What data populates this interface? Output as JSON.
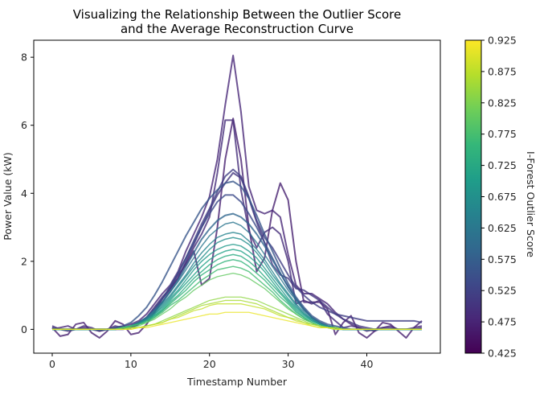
{
  "chart_data": {
    "type": "line",
    "title_lines": [
      "Visualizing the Relationship Between the Outlier Score",
      "and the Average Reconstruction Curve"
    ],
    "xlabel": "Timestamp Number",
    "ylabel": "Power Value (kW)",
    "xlim": [
      -2.35,
      49.35
    ],
    "ylim": [
      -0.7,
      8.5
    ],
    "x_ticks": [
      0,
      10,
      20,
      30,
      40
    ],
    "y_ticks": [
      0,
      2,
      4,
      6,
      8
    ],
    "colorbar": {
      "label": "I-Forest Outlier Score",
      "range": [
        0.425,
        0.925
      ],
      "ticks": [
        "0.425",
        "0.475",
        "0.525",
        "0.575",
        "0.625",
        "0.675",
        "0.725",
        "0.775",
        "0.825",
        "0.875",
        "0.925"
      ],
      "stops": [
        "#440154",
        "#482878",
        "#3e4989",
        "#31688e",
        "#26828e",
        "#1f9e89",
        "#35b779",
        "#6ece58",
        "#b5de2b",
        "#fde725"
      ]
    },
    "series": [
      {
        "score": 0.47,
        "values": [
          0.05,
          -0.2,
          -0.15,
          0.15,
          0.2,
          -0.1,
          -0.25,
          -0.05,
          0.25,
          0.15,
          -0.15,
          -0.1,
          0.15,
          0.5,
          0.9,
          1.2,
          1.6,
          1.9,
          2.3,
          1.3,
          1.5,
          3.0,
          5.0,
          6.2,
          5.0,
          3.0,
          1.7,
          2.1,
          3.5,
          4.3,
          3.8,
          2.0,
          0.8,
          0.8,
          0.8,
          0.6,
          -0.15,
          0.2,
          0.4,
          -0.1,
          -0.25,
          -0.05,
          0.2,
          0.15,
          -0.05,
          -0.25,
          0.05,
          0.25
        ]
      },
      {
        "score": 0.48,
        "values": [
          0.0,
          0.05,
          0.1,
          0.0,
          0.05,
          0.0,
          -0.05,
          0.0,
          0.05,
          0.1,
          0.15,
          0.25,
          0.45,
          0.75,
          1.05,
          1.3,
          1.7,
          2.3,
          2.8,
          3.3,
          3.9,
          5.0,
          6.6,
          8.05,
          6.4,
          4.2,
          3.5,
          3.4,
          3.5,
          3.3,
          2.2,
          1.3,
          1.05,
          1.05,
          0.9,
          0.75,
          0.5,
          0.3,
          0.15,
          0.05,
          0.0,
          -0.05,
          0.05,
          0.1,
          0.0,
          0.0,
          0.05,
          0.1
        ]
      },
      {
        "score": 0.49,
        "values": [
          0.1,
          0.0,
          -0.05,
          0.0,
          0.1,
          0.05,
          -0.05,
          0.0,
          0.1,
          0.05,
          0.05,
          0.15,
          0.35,
          0.65,
          0.95,
          1.2,
          1.5,
          1.95,
          2.4,
          2.8,
          3.3,
          4.6,
          6.15,
          6.15,
          4.1,
          2.9,
          2.4,
          2.85,
          3.0,
          2.8,
          2.0,
          0.75,
          0.85,
          0.75,
          0.85,
          0.45,
          0.25,
          0.05,
          0.1,
          0.05,
          -0.05,
          0.0,
          0.05,
          0.05,
          0.0,
          0.0,
          0.0,
          0.05
        ]
      },
      {
        "score": 0.505,
        "values": [
          0.0,
          0.0,
          0.0,
          0.0,
          0.0,
          0.0,
          0.0,
          0.0,
          0.0,
          0.0,
          0.05,
          0.15,
          0.3,
          0.5,
          0.8,
          1.15,
          1.5,
          2.0,
          2.5,
          3.0,
          3.5,
          3.95,
          4.3,
          4.6,
          4.45,
          3.85,
          3.15,
          2.55,
          1.9,
          1.6,
          1.5,
          1.2,
          1.15,
          1.0,
          0.85,
          0.65,
          0.45,
          0.3,
          0.2,
          0.1,
          0.05,
          0.0,
          0.0,
          0.0,
          0.0,
          0.0,
          0.0,
          0.0
        ]
      },
      {
        "score": 0.52,
        "values": [
          0.05,
          0.0,
          0.0,
          0.0,
          0.0,
          0.0,
          0.0,
          0.0,
          0.0,
          0.05,
          0.1,
          0.2,
          0.35,
          0.6,
          0.9,
          1.25,
          1.65,
          2.1,
          2.6,
          3.1,
          3.55,
          4.05,
          4.5,
          4.7,
          4.5,
          3.9,
          3.2,
          2.7,
          2.4,
          2.0,
          1.6,
          1.25,
          1.0,
          0.8,
          0.65,
          0.55,
          0.45,
          0.4,
          0.35,
          0.3,
          0.25,
          0.25,
          0.25,
          0.25,
          0.25,
          0.25,
          0.25,
          0.2
        ]
      },
      {
        "score": 0.54,
        "values": [
          0.0,
          0.0,
          0.0,
          0.0,
          0.0,
          0.0,
          0.0,
          0.0,
          0.0,
          0.05,
          0.1,
          0.2,
          0.35,
          0.6,
          0.9,
          1.25,
          1.65,
          2.1,
          2.55,
          3.0,
          3.4,
          3.75,
          3.95,
          3.95,
          3.75,
          3.4,
          3.0,
          2.55,
          2.1,
          1.65,
          1.25,
          0.9,
          0.6,
          0.35,
          0.2,
          0.1,
          0.05,
          0.0,
          0.0,
          0.0,
          0.0,
          0.0,
          0.0,
          0.0,
          0.0,
          0.0,
          0.0,
          0.0
        ]
      },
      {
        "score": 0.56,
        "values": [
          0.0,
          0.0,
          0.0,
          0.0,
          0.0,
          0.0,
          0.0,
          0.0,
          0.05,
          0.1,
          0.2,
          0.4,
          0.65,
          1.0,
          1.4,
          1.85,
          2.3,
          2.75,
          3.15,
          3.55,
          3.85,
          4.1,
          4.3,
          4.35,
          4.2,
          3.85,
          3.35,
          2.8,
          2.3,
          1.8,
          1.35,
          0.95,
          0.65,
          0.4,
          0.25,
          0.15,
          0.1,
          0.05,
          0.0,
          0.0,
          0.0,
          0.0,
          0.0,
          0.0,
          0.0,
          0.0,
          0.0,
          0.0
        ]
      },
      {
        "score": 0.59,
        "values": [
          0.0,
          0.0,
          0.0,
          0.0,
          0.0,
          0.0,
          0.0,
          0.0,
          0.0,
          0.05,
          0.1,
          0.2,
          0.35,
          0.55,
          0.8,
          1.1,
          1.45,
          1.85,
          2.25,
          2.65,
          2.95,
          3.2,
          3.35,
          3.4,
          3.3,
          3.1,
          2.8,
          2.45,
          2.05,
          1.65,
          1.25,
          0.9,
          0.6,
          0.35,
          0.2,
          0.1,
          0.05,
          0.0,
          0.0,
          0.0,
          0.0,
          0.0,
          0.0,
          0.0,
          0.0,
          0.0,
          0.0,
          0.0
        ]
      },
      {
        "score": 0.62,
        "values": [
          0.0,
          0.0,
          0.0,
          0.0,
          0.0,
          0.0,
          0.0,
          0.0,
          0.0,
          0.05,
          0.1,
          0.2,
          0.35,
          0.55,
          0.8,
          1.1,
          1.4,
          1.75,
          2.1,
          2.45,
          2.75,
          2.95,
          3.1,
          3.15,
          3.05,
          2.85,
          2.55,
          2.2,
          1.85,
          1.5,
          1.15,
          0.85,
          0.55,
          0.35,
          0.2,
          0.1,
          0.05,
          0.0,
          0.0,
          0.0,
          0.0,
          0.0,
          0.0,
          0.0,
          0.0,
          0.0,
          0.0,
          0.0
        ]
      },
      {
        "score": 0.65,
        "values": [
          0.0,
          0.0,
          0.0,
          0.0,
          0.0,
          0.0,
          0.0,
          0.0,
          0.0,
          0.05,
          0.1,
          0.2,
          0.3,
          0.5,
          0.75,
          1.0,
          1.3,
          1.6,
          1.95,
          2.25,
          2.5,
          2.7,
          2.8,
          2.85,
          2.8,
          2.6,
          2.35,
          2.05,
          1.7,
          1.35,
          1.05,
          0.75,
          0.5,
          0.3,
          0.15,
          0.1,
          0.05,
          0.0,
          0.0,
          0.0,
          0.0,
          0.0,
          0.0,
          0.0,
          0.0,
          0.0,
          0.0,
          0.0
        ]
      },
      {
        "score": 0.67,
        "values": [
          0.0,
          0.0,
          0.0,
          0.0,
          0.0,
          0.0,
          0.0,
          0.0,
          0.0,
          0.05,
          0.1,
          0.15,
          0.3,
          0.45,
          0.7,
          0.95,
          1.25,
          1.55,
          1.85,
          2.1,
          2.35,
          2.55,
          2.65,
          2.7,
          2.65,
          2.5,
          2.25,
          1.95,
          1.6,
          1.3,
          1.0,
          0.7,
          0.45,
          0.3,
          0.15,
          0.1,
          0.05,
          0.0,
          0.0,
          0.0,
          0.0,
          0.0,
          0.0,
          0.0,
          0.0,
          0.0,
          0.0,
          0.0
        ]
      },
      {
        "score": 0.69,
        "values": [
          0.0,
          0.0,
          0.0,
          0.0,
          0.0,
          0.0,
          0.0,
          0.0,
          0.0,
          0.05,
          0.1,
          0.15,
          0.25,
          0.45,
          0.65,
          0.9,
          1.15,
          1.45,
          1.75,
          2.0,
          2.2,
          2.35,
          2.45,
          2.5,
          2.45,
          2.3,
          2.1,
          1.8,
          1.5,
          1.2,
          0.9,
          0.65,
          0.45,
          0.25,
          0.15,
          0.05,
          0.05,
          0.0,
          0.0,
          0.0,
          0.0,
          0.0,
          0.0,
          0.0,
          0.0,
          0.0,
          0.0,
          0.0
        ]
      },
      {
        "score": 0.71,
        "values": [
          0.0,
          0.0,
          0.0,
          0.0,
          0.0,
          0.0,
          0.0,
          0.0,
          0.0,
          0.05,
          0.1,
          0.15,
          0.25,
          0.4,
          0.6,
          0.85,
          1.1,
          1.35,
          1.6,
          1.85,
          2.05,
          2.2,
          2.3,
          2.35,
          2.3,
          2.15,
          1.95,
          1.7,
          1.4,
          1.1,
          0.85,
          0.6,
          0.4,
          0.25,
          0.15,
          0.05,
          0.05,
          0.0,
          0.0,
          0.0,
          0.0,
          0.0,
          0.0,
          0.0,
          0.0,
          0.0,
          0.0,
          0.0
        ]
      },
      {
        "score": 0.73,
        "values": [
          0.0,
          0.0,
          0.0,
          0.0,
          0.0,
          0.0,
          0.0,
          0.0,
          0.0,
          0.05,
          0.1,
          0.15,
          0.25,
          0.4,
          0.55,
          0.8,
          1.0,
          1.25,
          1.5,
          1.7,
          1.9,
          2.05,
          2.15,
          2.2,
          2.15,
          2.0,
          1.8,
          1.55,
          1.3,
          1.05,
          0.8,
          0.55,
          0.35,
          0.2,
          0.1,
          0.05,
          0.0,
          0.0,
          0.0,
          0.0,
          0.0,
          0.0,
          0.0,
          0.0,
          0.0,
          0.0,
          0.0,
          0.0
        ]
      },
      {
        "score": 0.75,
        "values": [
          0.0,
          0.0,
          0.0,
          0.0,
          0.0,
          0.0,
          0.0,
          0.0,
          0.0,
          0.05,
          0.1,
          0.15,
          0.25,
          0.35,
          0.55,
          0.75,
          0.95,
          1.15,
          1.4,
          1.6,
          1.75,
          1.9,
          2.0,
          2.05,
          2.0,
          1.85,
          1.65,
          1.45,
          1.2,
          0.95,
          0.75,
          0.5,
          0.35,
          0.2,
          0.1,
          0.05,
          0.0,
          0.0,
          0.0,
          0.0,
          0.0,
          0.0,
          0.0,
          0.0,
          0.0,
          0.0,
          0.0,
          0.0
        ]
      },
      {
        "score": 0.77,
        "values": [
          0.0,
          0.0,
          0.0,
          0.0,
          0.0,
          0.0,
          0.0,
          0.0,
          0.0,
          0.05,
          0.1,
          0.15,
          0.2,
          0.35,
          0.5,
          0.7,
          0.85,
          1.05,
          1.25,
          1.45,
          1.6,
          1.75,
          1.8,
          1.85,
          1.8,
          1.7,
          1.5,
          1.3,
          1.1,
          0.85,
          0.65,
          0.45,
          0.3,
          0.2,
          0.1,
          0.05,
          0.0,
          0.0,
          0.0,
          0.0,
          0.0,
          0.0,
          0.0,
          0.0,
          0.0,
          0.0,
          0.0,
          0.0
        ]
      },
      {
        "score": 0.8,
        "values": [
          0.0,
          0.0,
          0.0,
          0.0,
          0.0,
          0.0,
          0.0,
          0.0,
          0.0,
          0.05,
          0.05,
          0.1,
          0.2,
          0.3,
          0.45,
          0.6,
          0.8,
          0.95,
          1.15,
          1.3,
          1.45,
          1.55,
          1.6,
          1.65,
          1.6,
          1.5,
          1.35,
          1.2,
          1.0,
          0.8,
          0.6,
          0.45,
          0.3,
          0.2,
          0.1,
          0.05,
          0.0,
          0.0,
          0.0,
          0.0,
          0.0,
          0.0,
          0.0,
          0.0,
          0.0,
          0.0,
          0.0,
          0.0
        ]
      },
      {
        "score": 0.84,
        "values": [
          0.0,
          0.0,
          0.0,
          0.0,
          0.0,
          0.0,
          0.0,
          0.0,
          0.0,
          0.0,
          0.05,
          0.05,
          0.1,
          0.15,
          0.25,
          0.35,
          0.45,
          0.55,
          0.65,
          0.75,
          0.85,
          0.9,
          0.95,
          0.95,
          0.95,
          0.9,
          0.85,
          0.75,
          0.65,
          0.55,
          0.45,
          0.35,
          0.25,
          0.15,
          0.1,
          0.05,
          0.05,
          0.0,
          0.0,
          0.0,
          0.0,
          0.0,
          0.0,
          0.0,
          0.0,
          0.0,
          0.0,
          0.0
        ]
      },
      {
        "score": 0.86,
        "values": [
          0.0,
          0.0,
          0.0,
          0.0,
          0.0,
          0.0,
          0.0,
          0.0,
          0.0,
          0.0,
          0.05,
          0.05,
          0.1,
          0.15,
          0.2,
          0.3,
          0.4,
          0.5,
          0.6,
          0.7,
          0.75,
          0.8,
          0.85,
          0.85,
          0.85,
          0.8,
          0.75,
          0.65,
          0.55,
          0.45,
          0.35,
          0.3,
          0.2,
          0.15,
          0.1,
          0.05,
          0.05,
          0.0,
          0.0,
          0.0,
          0.0,
          0.0,
          0.0,
          0.0,
          0.0,
          0.0,
          0.0,
          0.0
        ]
      },
      {
        "score": 0.88,
        "values": [
          0.0,
          0.0,
          0.0,
          0.0,
          0.0,
          0.0,
          0.0,
          0.0,
          0.0,
          0.0,
          0.0,
          0.05,
          0.1,
          0.15,
          0.2,
          0.3,
          0.35,
          0.45,
          0.55,
          0.6,
          0.7,
          0.75,
          0.75,
          0.75,
          0.75,
          0.7,
          0.65,
          0.6,
          0.5,
          0.4,
          0.35,
          0.25,
          0.2,
          0.1,
          0.05,
          0.05,
          0.0,
          0.0,
          0.0,
          0.0,
          0.0,
          0.0,
          0.0,
          0.0,
          0.0,
          0.0,
          0.0,
          0.0
        ]
      },
      {
        "score": 0.91,
        "values": [
          0.0,
          0.0,
          0.0,
          0.0,
          0.0,
          0.0,
          0.0,
          0.0,
          0.0,
          0.0,
          0.0,
          0.05,
          0.05,
          0.1,
          0.15,
          0.2,
          0.25,
          0.3,
          0.35,
          0.4,
          0.45,
          0.45,
          0.5,
          0.5,
          0.5,
          0.5,
          0.45,
          0.4,
          0.35,
          0.3,
          0.25,
          0.2,
          0.15,
          0.1,
          0.05,
          0.05,
          0.0,
          0.0,
          0.0,
          0.0,
          0.0,
          0.0,
          0.0,
          0.0,
          0.0,
          0.0,
          0.0,
          0.0
        ]
      }
    ]
  }
}
